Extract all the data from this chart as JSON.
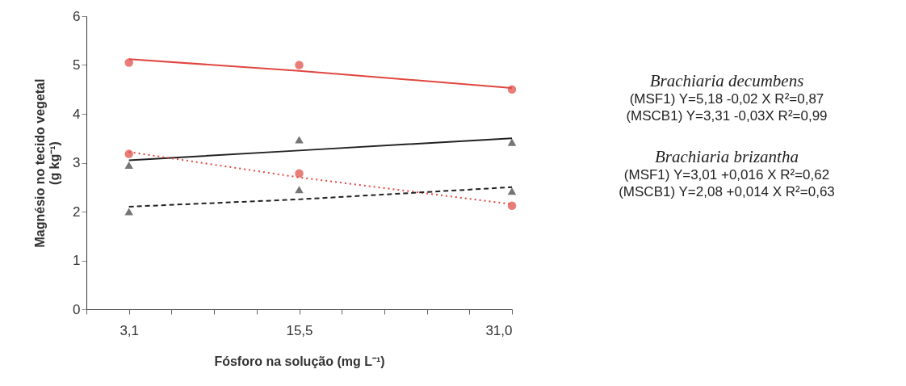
{
  "chart_data": {
    "type": "scatter",
    "xlabel": "Fósforo na solução (mg L⁻¹)",
    "ylabel": "Magnésio no tecido vegetal (g kg⁻¹)",
    "x": [
      3.1,
      15.5,
      31.0
    ],
    "series": [
      {
        "color": "#e0463f",
        "marker": "circle",
        "values": [
          5.05,
          5.0,
          4.5
        ]
      },
      {
        "color": "#3a3a3a",
        "marker": "triangle",
        "values": [
          2.95,
          3.47,
          3.42
        ]
      },
      {
        "color": "#e0463f",
        "marker": "circle",
        "values": [
          3.18,
          2.78,
          2.12
        ]
      },
      {
        "color": "#3a3a3a",
        "marker": "triangle",
        "values": [
          2.0,
          2.45,
          2.42
        ]
      },
      {
        "type": "line",
        "color": "#e0463f",
        "line_style": "solid",
        "values": [
          5.12,
          4.88,
          4.53
        ]
      },
      {
        "type": "line",
        "color": "#222222",
        "line_style": "solid",
        "values": [
          3.05,
          3.25,
          3.5
        ]
      },
      {
        "type": "line",
        "color": "#e0463f",
        "line_style": "dotted",
        "values": [
          3.22,
          2.7,
          2.15
        ]
      },
      {
        "type": "line",
        "color": "#222222",
        "line_style": "dashed",
        "values": [
          2.1,
          2.25,
          2.5
        ]
      }
    ],
    "xlim": [
      0,
      31.0
    ],
    "xticks": [
      {
        "value": 0,
        "label": null
      },
      {
        "value": 3.1,
        "label": "3,1"
      },
      {
        "value": 6.2,
        "label": null
      },
      {
        "value": 9.3,
        "label": null
      },
      {
        "value": 12.4,
        "label": null
      },
      {
        "value": 15.5,
        "label": "15,5"
      },
      {
        "value": 18.6,
        "label": null
      },
      {
        "value": 21.7,
        "label": null
      },
      {
        "value": 24.8,
        "label": null
      },
      {
        "value": 27.9,
        "label": null
      },
      {
        "value": 31.0,
        "label": "31,0"
      }
    ],
    "ylim": [
      0,
      6
    ],
    "yticks": [
      0,
      1,
      2,
      3,
      4,
      5,
      6
    ],
    "grid": false,
    "annotations": [
      "Brachiaria decumbens",
      "(MSF1) Y=5,18 -0,02 X  R²=0,87",
      "(MSCB1) Y=3,31 -0,03X  R²=0,99",
      "Brachiaria brizantha",
      "(MSF1) Y=3,01 +0,016 X  R²=0,62",
      "(MSCB1) Y=2,08 +0,014 X   R²=0,63"
    ]
  }
}
